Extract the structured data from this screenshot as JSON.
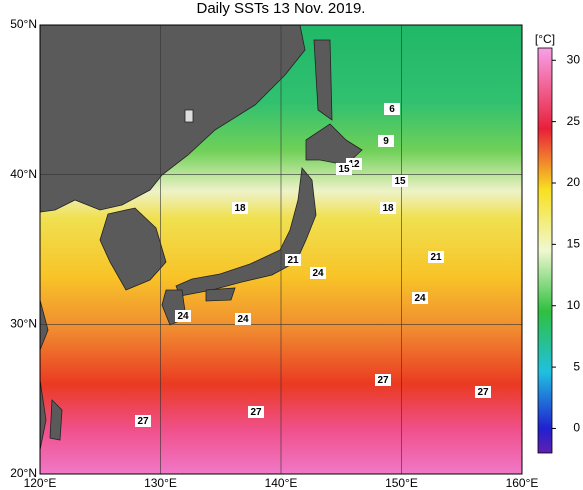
{
  "title": "Daily SSTs 13 Nov. 2019.",
  "lat_ticks": [
    {
      "value": 50,
      "label": "50°N"
    },
    {
      "value": 40,
      "label": "40°N"
    },
    {
      "value": 30,
      "label": "30°N"
    },
    {
      "value": 20,
      "label": "20°N"
    }
  ],
  "lon_ticks": [
    {
      "value": 120,
      "label": "120°E"
    },
    {
      "value": 130,
      "label": "130°E"
    },
    {
      "value": 140,
      "label": "140°E"
    },
    {
      "value": 150,
      "label": "150°E"
    },
    {
      "value": 160,
      "label": "160°E"
    }
  ],
  "colorbar": {
    "unit": "[°C]",
    "range": [
      -2,
      31
    ],
    "ticks": [
      0,
      5,
      10,
      15,
      20,
      25,
      30
    ]
  },
  "contour_labels": [
    6,
    9,
    12,
    15,
    15,
    18,
    18,
    21,
    21,
    24,
    24,
    24,
    24,
    27,
    27,
    27,
    27
  ]
}
